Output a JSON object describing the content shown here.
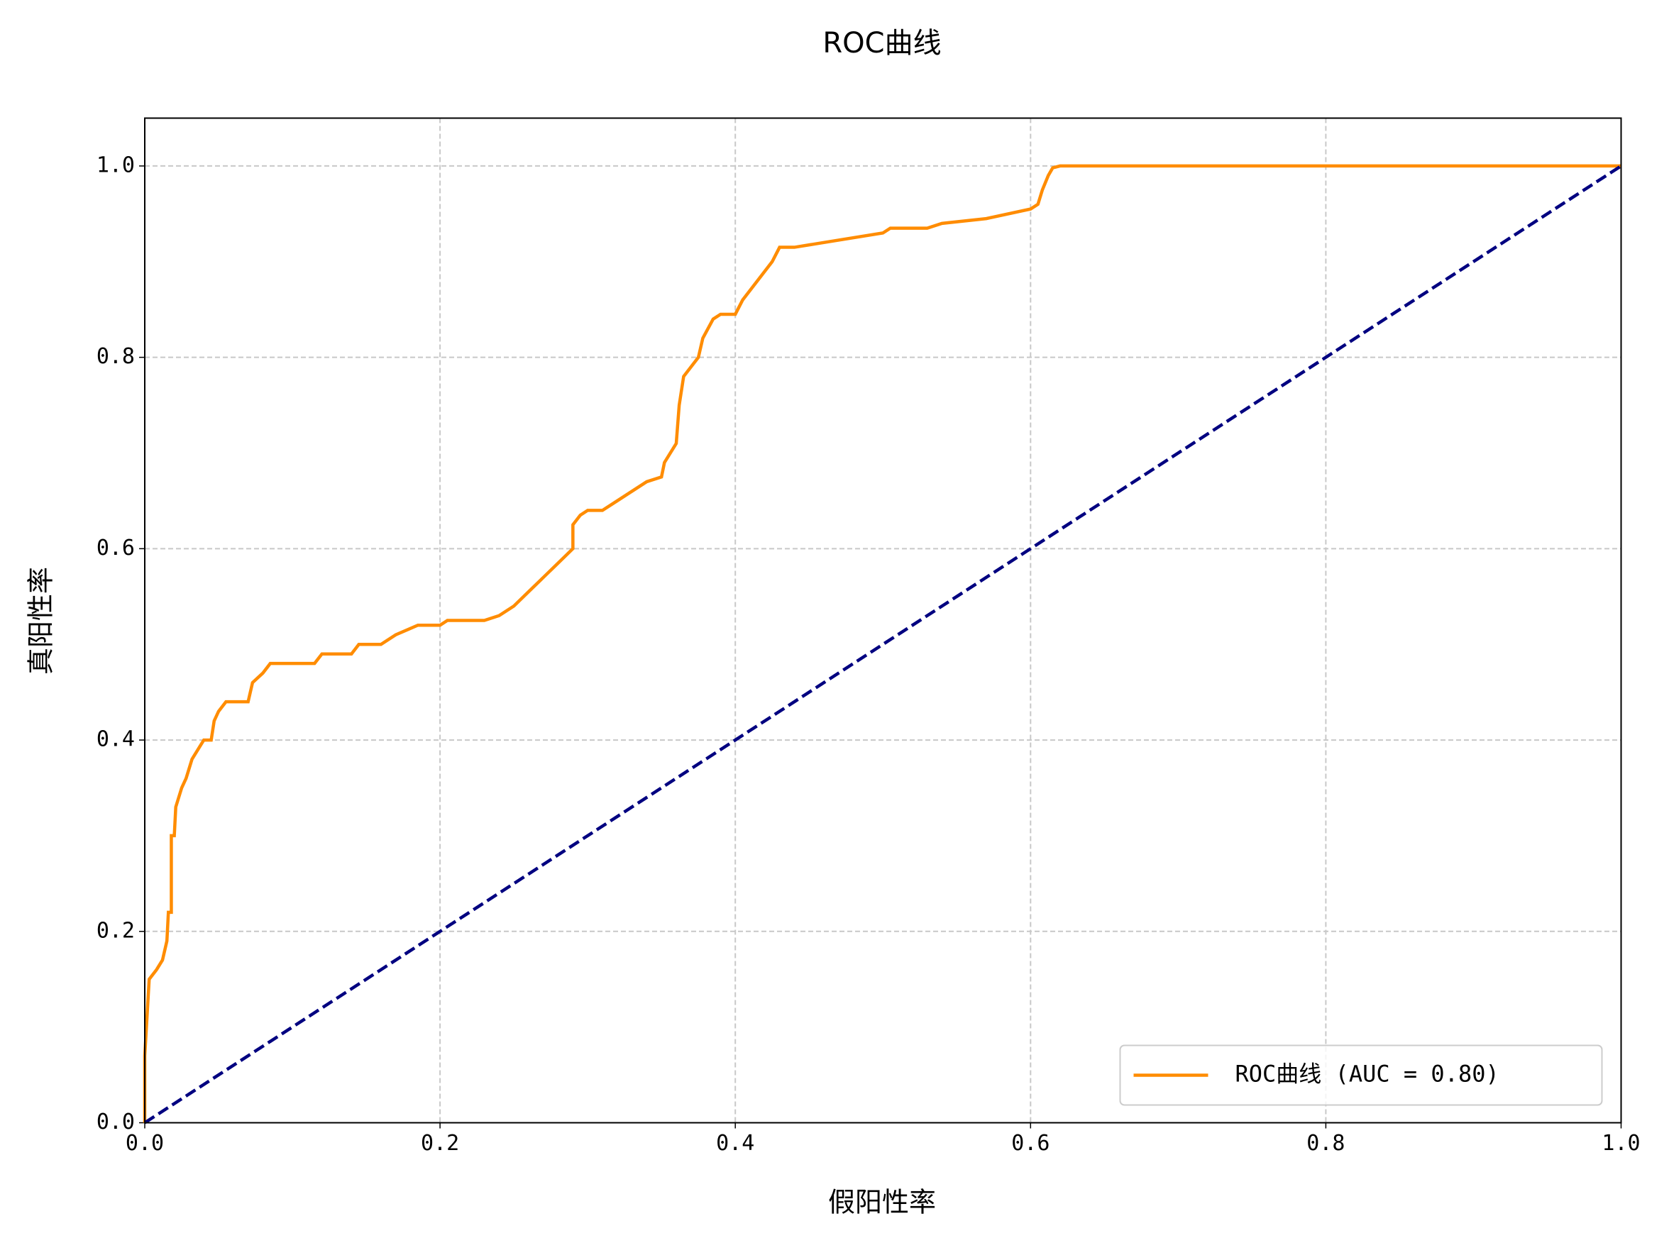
{
  "chart_data": {
    "type": "line",
    "title": "ROC曲线",
    "x_label": "假阳性率",
    "y_label": "真阳性率",
    "xlim": [
      0,
      1
    ],
    "ylim": [
      0,
      1.05
    ],
    "xticks": [
      {
        "value": 0,
        "label": "0.0"
      },
      0.2,
      0.4,
      0.6,
      0.8,
      {
        "value": 1,
        "label": "1.0"
      }
    ],
    "yticks": [
      {
        "value": 0,
        "label": "0.0"
      },
      0.2,
      0.4,
      0.6,
      0.8,
      {
        "value": 1,
        "label": "1.0"
      }
    ],
    "grid": true,
    "legend": "lower right",
    "series": [
      {
        "name": "ROC曲线 (AUC = 0.80)",
        "color": "#ff8c00",
        "linestyle": "solid",
        "x": [
          0,
          0,
          0.003,
          0.008,
          0.012,
          0.015,
          0.016,
          0.018,
          0.018,
          0.02,
          0.021,
          0.025,
          0.028,
          0.032,
          0.036,
          0.04,
          0.045,
          0.047,
          0.05,
          0.055,
          0.07,
          0.073,
          0.08,
          0.085,
          0.115,
          0.12,
          0.14,
          0.145,
          0.16,
          0.17,
          0.185,
          0.2,
          0.205,
          0.23,
          0.24,
          0.25,
          0.26,
          0.27,
          0.28,
          0.29,
          0.29,
          0.295,
          0.3,
          0.31,
          0.32,
          0.33,
          0.34,
          0.35,
          0.352,
          0.36,
          0.362,
          0.365,
          0.37,
          0.375,
          0.378,
          0.385,
          0.39,
          0.4,
          0.405,
          0.41,
          0.42,
          0.425,
          0.43,
          0.44,
          0.46,
          0.5,
          0.505,
          0.53,
          0.54,
          0.57,
          0.6,
          0.605,
          0.608,
          0.612,
          0.615,
          0.62,
          1.0
        ],
        "values": [
          0,
          0.07,
          0.15,
          0.16,
          0.17,
          0.19,
          0.22,
          0.22,
          0.3,
          0.3,
          0.33,
          0.35,
          0.36,
          0.38,
          0.39,
          0.4,
          0.4,
          0.42,
          0.43,
          0.44,
          0.44,
          0.46,
          0.47,
          0.48,
          0.48,
          0.49,
          0.49,
          0.5,
          0.5,
          0.51,
          0.52,
          0.52,
          0.525,
          0.525,
          0.53,
          0.54,
          0.555,
          0.57,
          0.585,
          0.6,
          0.625,
          0.635,
          0.64,
          0.64,
          0.65,
          0.66,
          0.67,
          0.675,
          0.69,
          0.71,
          0.75,
          0.78,
          0.79,
          0.8,
          0.82,
          0.84,
          0.845,
          0.845,
          0.86,
          0.87,
          0.89,
          0.9,
          0.915,
          0.915,
          0.92,
          0.93,
          0.935,
          0.935,
          0.94,
          0.945,
          0.955,
          0.96,
          0.975,
          0.99,
          0.998,
          1.0,
          1.0
        ]
      },
      {
        "color": "#000080",
        "linestyle": "dashed",
        "x": [
          0,
          1
        ],
        "values": [
          0,
          1
        ]
      }
    ]
  }
}
